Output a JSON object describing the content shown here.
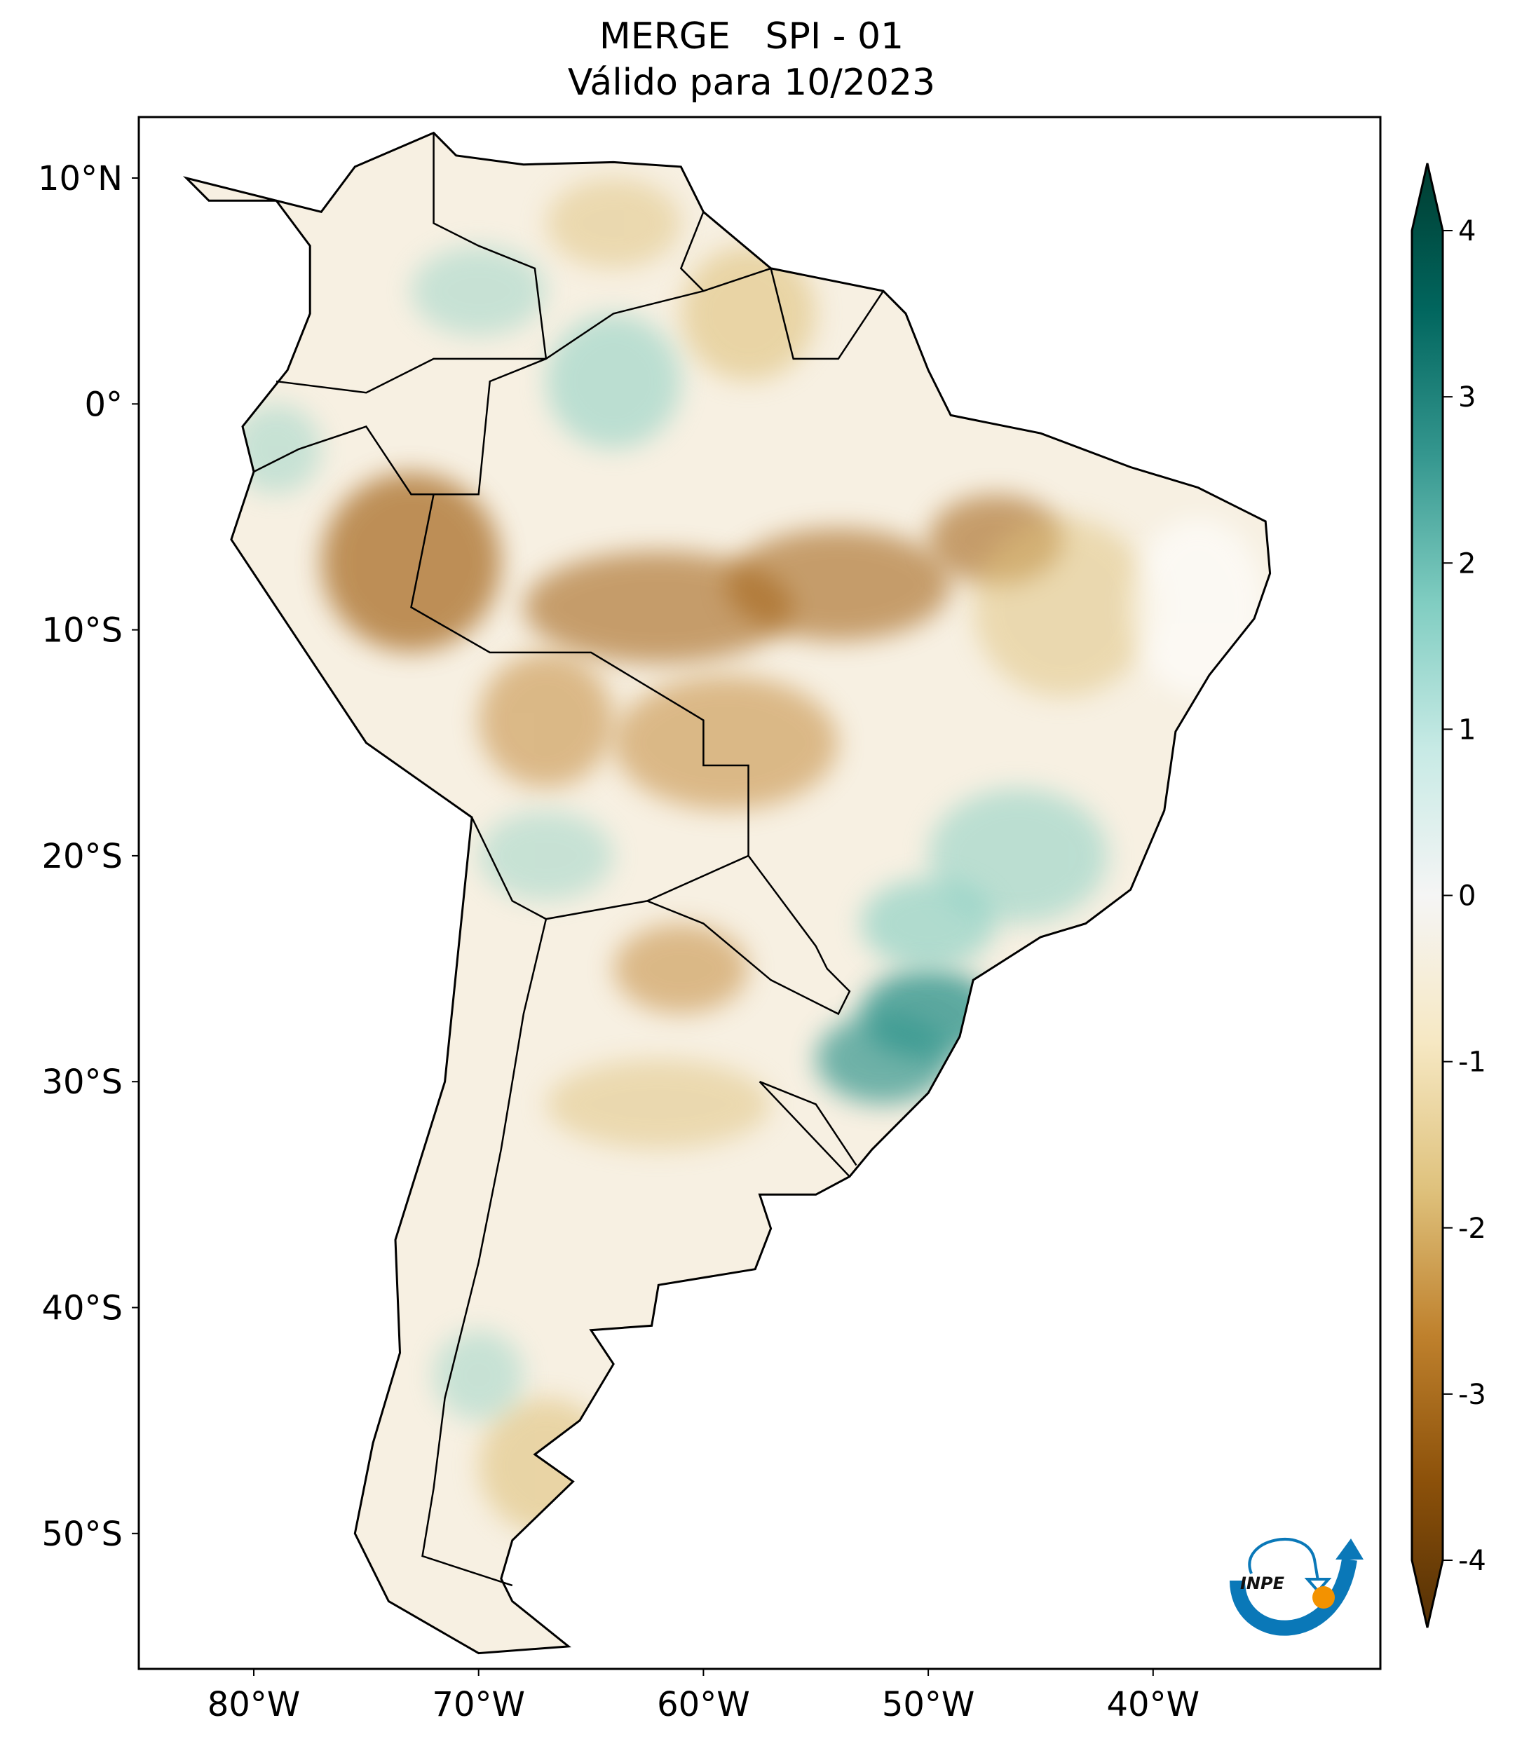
{
  "title": "MERGE   SPI - 01",
  "subtitle": "Válido para 10/2023",
  "map": {
    "lat_labels": [
      "10°N",
      "0°",
      "10°S",
      "20°S",
      "30°S",
      "40°S",
      "50°S"
    ],
    "lat_values": [
      10,
      0,
      -10,
      -20,
      -30,
      -40,
      -50
    ],
    "lon_labels": [
      "80°W",
      "70°W",
      "60°W",
      "50°W",
      "40°W"
    ],
    "lon_values": [
      -80,
      -70,
      -60,
      -50,
      -40
    ],
    "extent": {
      "lon_min": -85,
      "lon_max": -29.5,
      "lat_min": -56,
      "lat_max": 13
    }
  },
  "colorbar": {
    "ticks": [
      "4",
      "3",
      "2",
      "1",
      "0",
      "-1",
      "-2",
      "-3",
      "-4"
    ],
    "tick_values": [
      4,
      3,
      2,
      1,
      0,
      -1,
      -2,
      -3,
      -4
    ],
    "range": [
      -4,
      4
    ],
    "colors": [
      "#543005",
      "#8c510a",
      "#bf812d",
      "#dfc27d",
      "#f6e8c3",
      "#f5f5f5",
      "#c7eae5",
      "#80cdc1",
      "#35978f",
      "#01665e",
      "#003c30"
    ]
  },
  "logo": {
    "text": "INPE",
    "blue": "#0a78b8",
    "orange": "#f39200"
  }
}
